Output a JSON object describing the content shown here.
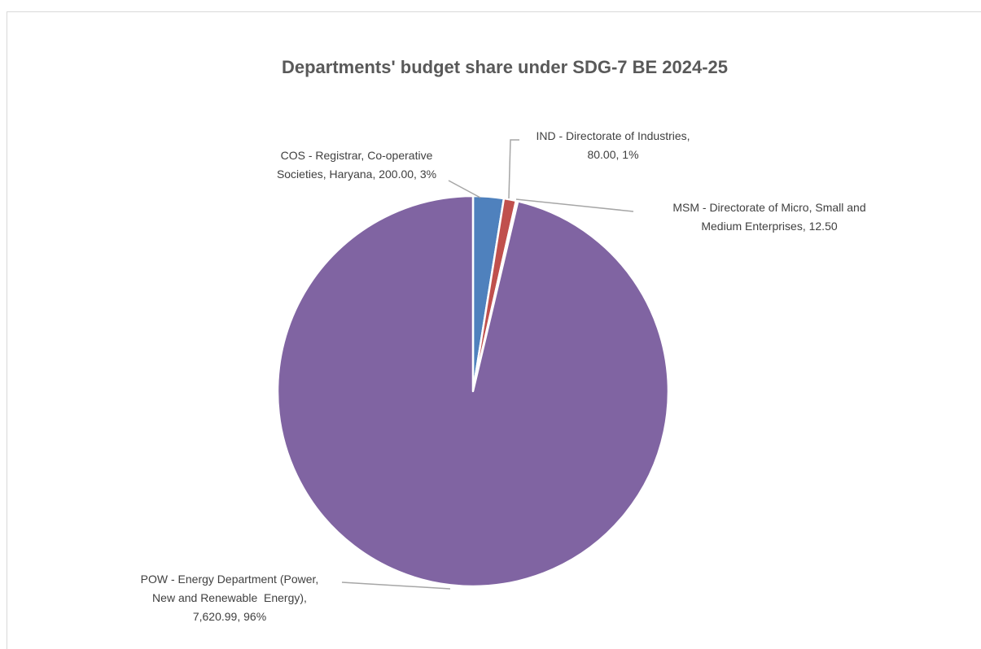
{
  "chart_data": {
    "type": "pie",
    "title": "Departments' budget share under SDG-7 BE 2024-25",
    "slices": [
      {
        "label_lines": [
          "COS - Registrar, Co-operative",
          "Societies, Haryana, 200.00, 3%"
        ],
        "name": "COS - Registrar, Co-operative Societies, Haryana",
        "value": 200.0,
        "percent": "3%",
        "color": "#4f81bd"
      },
      {
        "label_lines": [
          "IND - Directorate of Industries,",
          "80.00, 1%"
        ],
        "name": "IND - Directorate of Industries",
        "value": 80.0,
        "percent": "1%",
        "color": "#c0504d"
      },
      {
        "label_lines": [
          "MSM - Directorate of Micro, Small and",
          "Medium Enterprises, 12.50"
        ],
        "name": "MSM - Directorate of Micro, Small and Medium Enterprises",
        "value": 12.5,
        "percent": "",
        "color": "#9bbb59"
      },
      {
        "label_lines": [
          "POW - Energy Department (Power,",
          "New and Renewable  Energy),",
          "7,620.99, 96%"
        ],
        "name": "POW - Energy Department (Power, New and Renewable Energy)",
        "value": 7620.99,
        "percent": "96%",
        "color": "#8064a2"
      }
    ]
  }
}
